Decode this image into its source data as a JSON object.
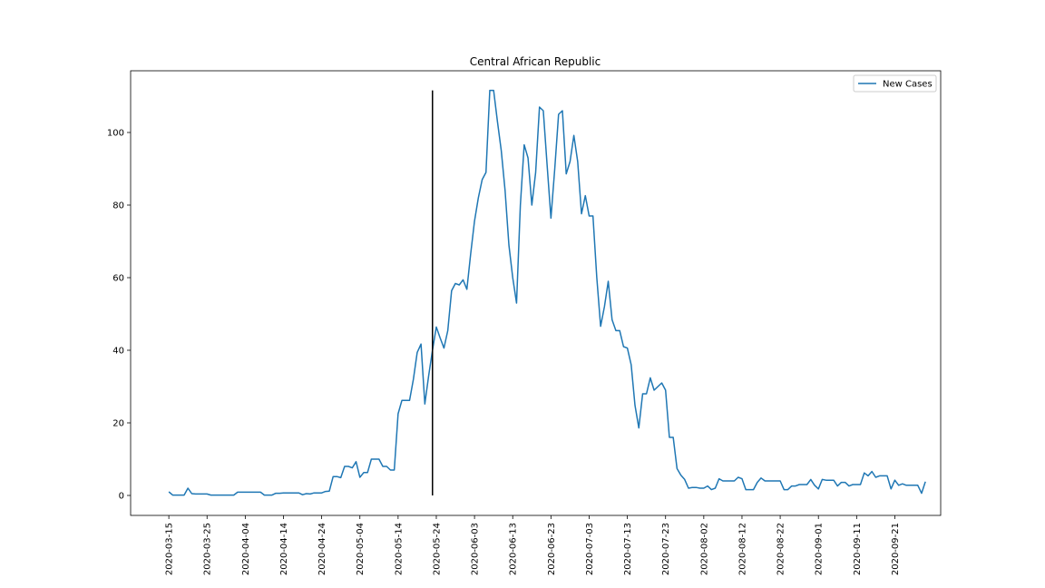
{
  "chart_data": {
    "type": "line",
    "title": "Central African Republic",
    "xlabel": "",
    "ylabel": "",
    "x_start": "2020-03-15",
    "x_end": "2020-09-30",
    "x_ticks": [
      "2020-03-15",
      "2020-03-25",
      "2020-04-04",
      "2020-04-14",
      "2020-04-24",
      "2020-05-04",
      "2020-05-14",
      "2020-05-24",
      "2020-06-03",
      "2020-06-13",
      "2020-06-23",
      "2020-07-03",
      "2020-07-13",
      "2020-07-23",
      "2020-08-02",
      "2020-08-12",
      "2020-08-22",
      "2020-09-01",
      "2020-09-11",
      "2020-09-21"
    ],
    "y_ticks": [
      0,
      20,
      40,
      60,
      80,
      100
    ],
    "ylim": [
      -5.5,
      117
    ],
    "xlim": [
      "2020-03-05",
      "2020-10-03"
    ],
    "grid": false,
    "legend": {
      "position": "top-right",
      "entries": [
        "New Cases"
      ]
    },
    "series": [
      {
        "name": "New Cases",
        "color": "#1f77b4",
        "values": [
          1.0,
          0.1,
          0.1,
          0.1,
          0.1,
          2.0,
          0.5,
          0.4,
          0.4,
          0.4,
          0.4,
          0.1,
          0.1,
          0.1,
          0.1,
          0.1,
          0.1,
          0.1,
          0.9,
          0.9,
          0.9,
          0.9,
          0.9,
          0.9,
          0.9,
          0.1,
          0.1,
          0.1,
          0.6,
          0.6,
          0.7,
          0.7,
          0.7,
          0.7,
          0.7,
          0.2,
          0.5,
          0.4,
          0.7,
          0.7,
          0.7,
          1.1,
          1.2,
          5.2,
          5.2,
          4.9,
          8.0,
          8.0,
          7.6,
          9.3,
          5.0,
          6.3,
          6.3,
          10.0,
          10.0,
          10.0,
          8.0,
          8.0,
          7.0,
          7.0,
          22.5,
          26.2,
          26.2,
          26.2,
          32.0,
          39.4,
          41.7,
          25.2,
          33.0,
          40.0,
          46.4,
          43.4,
          40.6,
          45.4,
          56.4,
          58.4,
          58.0,
          59.4,
          56.8,
          66.6,
          75.6,
          82.0,
          87.0,
          89.0,
          111.6,
          111.6,
          103.0,
          95.0,
          84.0,
          69.0,
          60.0,
          53.0,
          80.0,
          96.6,
          93.0,
          80.0,
          89.0,
          107.0,
          106.0,
          91.0,
          76.4,
          90.0,
          105.0,
          106.0,
          88.6,
          92.0,
          99.2,
          92.0,
          77.6,
          82.6,
          77.0,
          77.0,
          60.0,
          46.6,
          52.0,
          59.0,
          48.4,
          45.4,
          45.4,
          41.0,
          40.6,
          36.0,
          24.8,
          18.6,
          28.0,
          28.0,
          32.4,
          29.0,
          30.0,
          31.0,
          29.0,
          16.0,
          16.0,
          7.4,
          5.6,
          4.4,
          2.0,
          2.2,
          2.2,
          2.0,
          2.0,
          2.6,
          1.6,
          2.0,
          4.6,
          4.0,
          4.0,
          4.0,
          4.0,
          5.0,
          4.6,
          1.6,
          1.6,
          1.6,
          3.6,
          4.8,
          4.0,
          4.0,
          4.0,
          4.0,
          4.0,
          1.6,
          1.6,
          2.6,
          2.6,
          3.0,
          3.0,
          3.0,
          4.4,
          2.8,
          1.8,
          4.4,
          4.2,
          4.2,
          4.2,
          2.6,
          3.6,
          3.6,
          2.6,
          3.0,
          3.0,
          3.0,
          6.2,
          5.4,
          6.6,
          5.0,
          5.4,
          5.4,
          5.4,
          1.8,
          4.2,
          2.8,
          3.2,
          2.8,
          2.8,
          2.8,
          2.8,
          0.6,
          3.8
        ]
      }
    ],
    "vertical_marker": {
      "date": "2020-05-23",
      "y_from": 0,
      "y_to": 111.6,
      "color": "#000000"
    }
  }
}
